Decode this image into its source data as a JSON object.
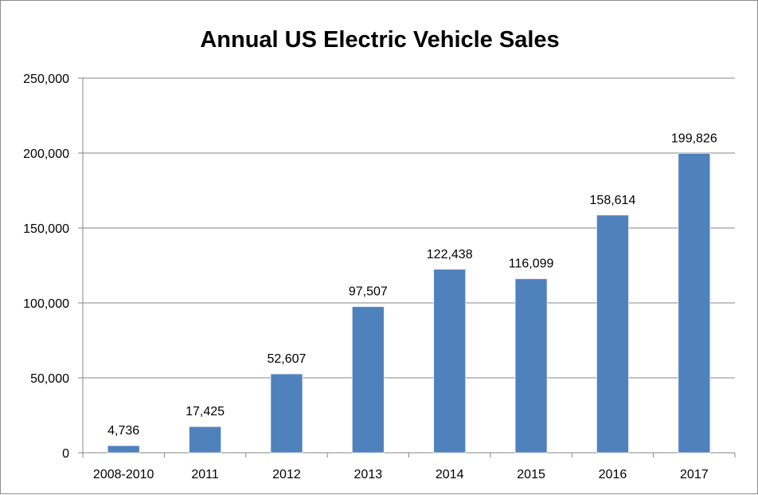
{
  "chart_data": {
    "type": "bar",
    "title": "Annual US Electric Vehicle Sales",
    "xlabel": "",
    "ylabel": "",
    "categories": [
      "2008-2010",
      "2011",
      "2012",
      "2013",
      "2014",
      "2015",
      "2016",
      "2017"
    ],
    "values": [
      4736,
      17425,
      52607,
      97507,
      122438,
      116099,
      158614,
      199826
    ],
    "data_labels": [
      "4,736",
      "17,425",
      "52,607",
      "97,507",
      "122,438",
      "116,099",
      "158,614",
      "199,826"
    ],
    "ylim": [
      0,
      250000
    ],
    "yticks": [
      0,
      50000,
      100000,
      150000,
      200000,
      250000
    ],
    "ytick_labels": [
      "0",
      "50,000",
      "100,000",
      "150,000",
      "200,000",
      "250,000"
    ],
    "grid": true,
    "legend": "none",
    "bar_color": "#4f81bd"
  }
}
